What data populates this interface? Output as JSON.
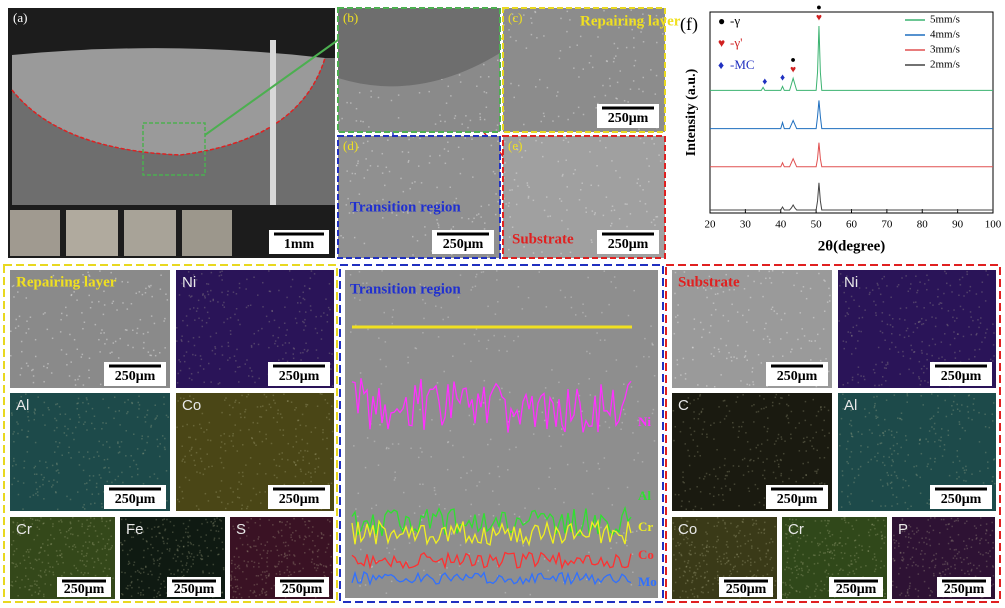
{
  "top_panels": [
    {
      "label": "(a)",
      "scale_bar": "1mm"
    },
    {
      "label": "(b)"
    },
    {
      "label": "(c)",
      "title": "Repairing layer",
      "scale_bar": "250μm"
    },
    {
      "label": "(d)",
      "title": "Transition region",
      "scale_bar": "250μm"
    },
    {
      "label": "(e)",
      "title": "Substrate",
      "scale_bar": "250μm"
    }
  ],
  "chart_label": "(f)",
  "chart_data": {
    "type": "line",
    "x_label": "2θ(degree)",
    "y_label": "Intensity (a.u.)",
    "x": [
      20,
      30,
      34.5,
      35,
      35.5,
      40,
      40.5,
      41,
      42.5,
      43,
      43.5,
      44,
      44.5,
      50,
      50.4,
      50.8,
      51.2,
      51.6,
      60,
      70,
      80,
      90,
      100
    ],
    "series": [
      {
        "name": "5mm/s",
        "color": "#3cb371",
        "values": [
          61,
          61,
          61,
          62.5,
          61,
          61,
          63,
          61,
          61,
          64,
          67,
          64,
          61,
          61,
          70,
          93,
          70,
          61,
          61,
          61,
          61,
          61,
          61
        ]
      },
      {
        "name": "4mm/s",
        "color": "#1f6fbf",
        "values": [
          42,
          42,
          42,
          42,
          42,
          42,
          45,
          42,
          42,
          44,
          46,
          44,
          42,
          42,
          48,
          56,
          48,
          42,
          42,
          42,
          42,
          42,
          42
        ]
      },
      {
        "name": "3mm/s",
        "color": "#e05050",
        "values": [
          23,
          23,
          23,
          23,
          23,
          23,
          25,
          23,
          23,
          25,
          27,
          25,
          23,
          23,
          27,
          35,
          27,
          23,
          23,
          23,
          23,
          23,
          23
        ]
      },
      {
        "name": "2mm/s",
        "color": "#444444",
        "values": [
          1.5,
          1.5,
          1.5,
          1.5,
          1.5,
          1.5,
          3,
          1.5,
          1.5,
          2.5,
          4,
          2.5,
          1.5,
          1.5,
          6,
          15,
          6,
          1.5,
          1.5,
          1.5,
          1.5,
          1.5,
          1.5
        ]
      }
    ],
    "xlim": [
      20,
      100
    ],
    "xticks": [
      20,
      30,
      40,
      50,
      60,
      70,
      80,
      90,
      100
    ],
    "ylim": [
      0,
      100
    ],
    "phase_legend": [
      {
        "symbol": "●",
        "label": "-γ",
        "color": "#000000"
      },
      {
        "symbol": "♥",
        "label": "-γ'",
        "color": "#d02020"
      },
      {
        "symbol": "♦",
        "label": "-MC",
        "color": "#2030c0"
      }
    ],
    "peak_markers": [
      {
        "x": 35.5,
        "symbol": "♦",
        "color": "#2030c0"
      },
      {
        "x": 40.5,
        "symbol": "♦",
        "color": "#2030c0"
      },
      {
        "x": 43.5,
        "symbol": "♥",
        "color": "#d02020"
      },
      {
        "x": 50.8,
        "symbol": "♥",
        "color": "#d02020"
      }
    ],
    "gamma_markers": [
      {
        "x": 43.5,
        "symbol": "●"
      },
      {
        "x": 50.8,
        "symbol": "●"
      }
    ]
  },
  "eds_repairing": {
    "maps": [
      {
        "title": "Repairing layer",
        "scale_bar": "250μm"
      },
      {
        "title": "Ni",
        "scale_bar": "250μm"
      },
      {
        "title": "Al",
        "scale_bar": "250μm"
      },
      {
        "title": "Co",
        "scale_bar": "250μm"
      },
      {
        "title": "Cr",
        "scale_bar": "250μm"
      },
      {
        "title": "Fe",
        "scale_bar": "250μm"
      },
      {
        "title": "S",
        "scale_bar": "250μm"
      }
    ]
  },
  "line_scan": {
    "title": "Transition region",
    "elements": [
      "Ni",
      "Al",
      "Cr",
      "Co",
      "Mo"
    ]
  },
  "eds_substrate": {
    "maps": [
      {
        "title": "Substrate",
        "scale_bar": "250μm"
      },
      {
        "title": "Ni",
        "scale_bar": "250μm"
      },
      {
        "title": "C",
        "scale_bar": "250μm"
      },
      {
        "title": "Al",
        "scale_bar": "250μm"
      },
      {
        "title": "Co",
        "scale_bar": "250μm"
      },
      {
        "title": "Cr",
        "scale_bar": "250μm"
      },
      {
        "title": "P",
        "scale_bar": "250μm"
      }
    ]
  }
}
